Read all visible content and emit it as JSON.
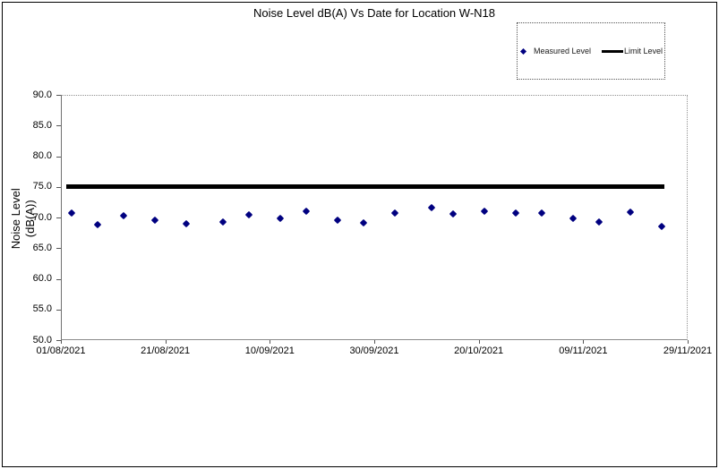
{
  "chart": {
    "title": "Noise Level dB(A) Vs Date for Location W-N18"
  },
  "legend": {
    "measured_label": "Measured Level",
    "limit_label": "Limit Level"
  },
  "y_axis": {
    "title_line1": "Noise Level",
    "title_line2": "(dB(A))"
  },
  "colors": {
    "measured_marker": "#000080",
    "limit_line": "#000000",
    "text": "#000000",
    "axis": "#808080",
    "background": "#ffffff"
  },
  "chart_data": {
    "type": "scatter",
    "title": "Noise Level dB(A) Vs Date for Location W-N18",
    "xlabel": "",
    "ylabel": "Noise Level (dB(A))",
    "ylim": [
      50.0,
      90.0
    ],
    "grid": false,
    "legend_position": "top-right",
    "x_axis_start_date": "01/08/2021",
    "x_range_days": [
      0,
      120
    ],
    "y_ticks": [
      {
        "value": 90,
        "label": "90.0"
      },
      {
        "value": 85,
        "label": "85.0"
      },
      {
        "value": 80,
        "label": "80.0"
      },
      {
        "value": 75,
        "label": "75.0"
      },
      {
        "value": 70,
        "label": "70.0"
      },
      {
        "value": 65,
        "label": "65.0"
      },
      {
        "value": 60,
        "label": "60.0"
      },
      {
        "value": 55,
        "label": "55.0"
      },
      {
        "value": 50,
        "label": "50.0"
      }
    ],
    "x_ticks": [
      {
        "day": 0,
        "label": "01/08/2021"
      },
      {
        "day": 20,
        "label": "21/08/2021"
      },
      {
        "day": 40,
        "label": "10/09/2021"
      },
      {
        "day": 60,
        "label": "30/09/2021"
      },
      {
        "day": 80,
        "label": "20/10/2021"
      },
      {
        "day": 100,
        "label": "09/11/2021"
      },
      {
        "day": 120,
        "label": "29/11/2021"
      }
    ],
    "series": [
      {
        "name": "Measured Level",
        "type": "scatter",
        "marker": "diamond",
        "color": "#000080",
        "points": [
          {
            "date": "03/08/2021",
            "day": 2,
            "value": 70.8
          },
          {
            "date": "08/08/2021",
            "day": 7,
            "value": 68.9
          },
          {
            "date": "13/08/2021",
            "day": 12,
            "value": 70.3
          },
          {
            "date": "19/08/2021",
            "day": 18,
            "value": 69.6
          },
          {
            "date": "25/08/2021",
            "day": 24,
            "value": 69.0
          },
          {
            "date": "01/09/2021",
            "day": 31,
            "value": 69.2
          },
          {
            "date": "06/09/2021",
            "day": 36,
            "value": 70.5
          },
          {
            "date": "12/09/2021",
            "day": 42,
            "value": 69.8
          },
          {
            "date": "17/09/2021",
            "day": 47,
            "value": 71.0
          },
          {
            "date": "23/09/2021",
            "day": 53,
            "value": 69.6
          },
          {
            "date": "28/09/2021",
            "day": 58,
            "value": 69.1
          },
          {
            "date": "04/10/2021",
            "day": 64,
            "value": 70.7
          },
          {
            "date": "11/10/2021",
            "day": 71,
            "value": 71.6
          },
          {
            "date": "15/10/2021",
            "day": 75,
            "value": 70.6
          },
          {
            "date": "21/10/2021",
            "day": 81,
            "value": 71.0
          },
          {
            "date": "27/10/2021",
            "day": 87,
            "value": 70.8
          },
          {
            "date": "01/11/2021",
            "day": 92,
            "value": 70.7
          },
          {
            "date": "07/11/2021",
            "day": 98,
            "value": 69.9
          },
          {
            "date": "12/11/2021",
            "day": 103,
            "value": 69.3
          },
          {
            "date": "18/11/2021",
            "day": 109,
            "value": 70.9
          },
          {
            "date": "24/11/2021",
            "day": 115,
            "value": 68.5
          }
        ]
      },
      {
        "name": "Limit Level",
        "type": "line",
        "color": "#000000",
        "value": 75.0,
        "span_days": [
          1,
          115.5
        ]
      }
    ]
  }
}
